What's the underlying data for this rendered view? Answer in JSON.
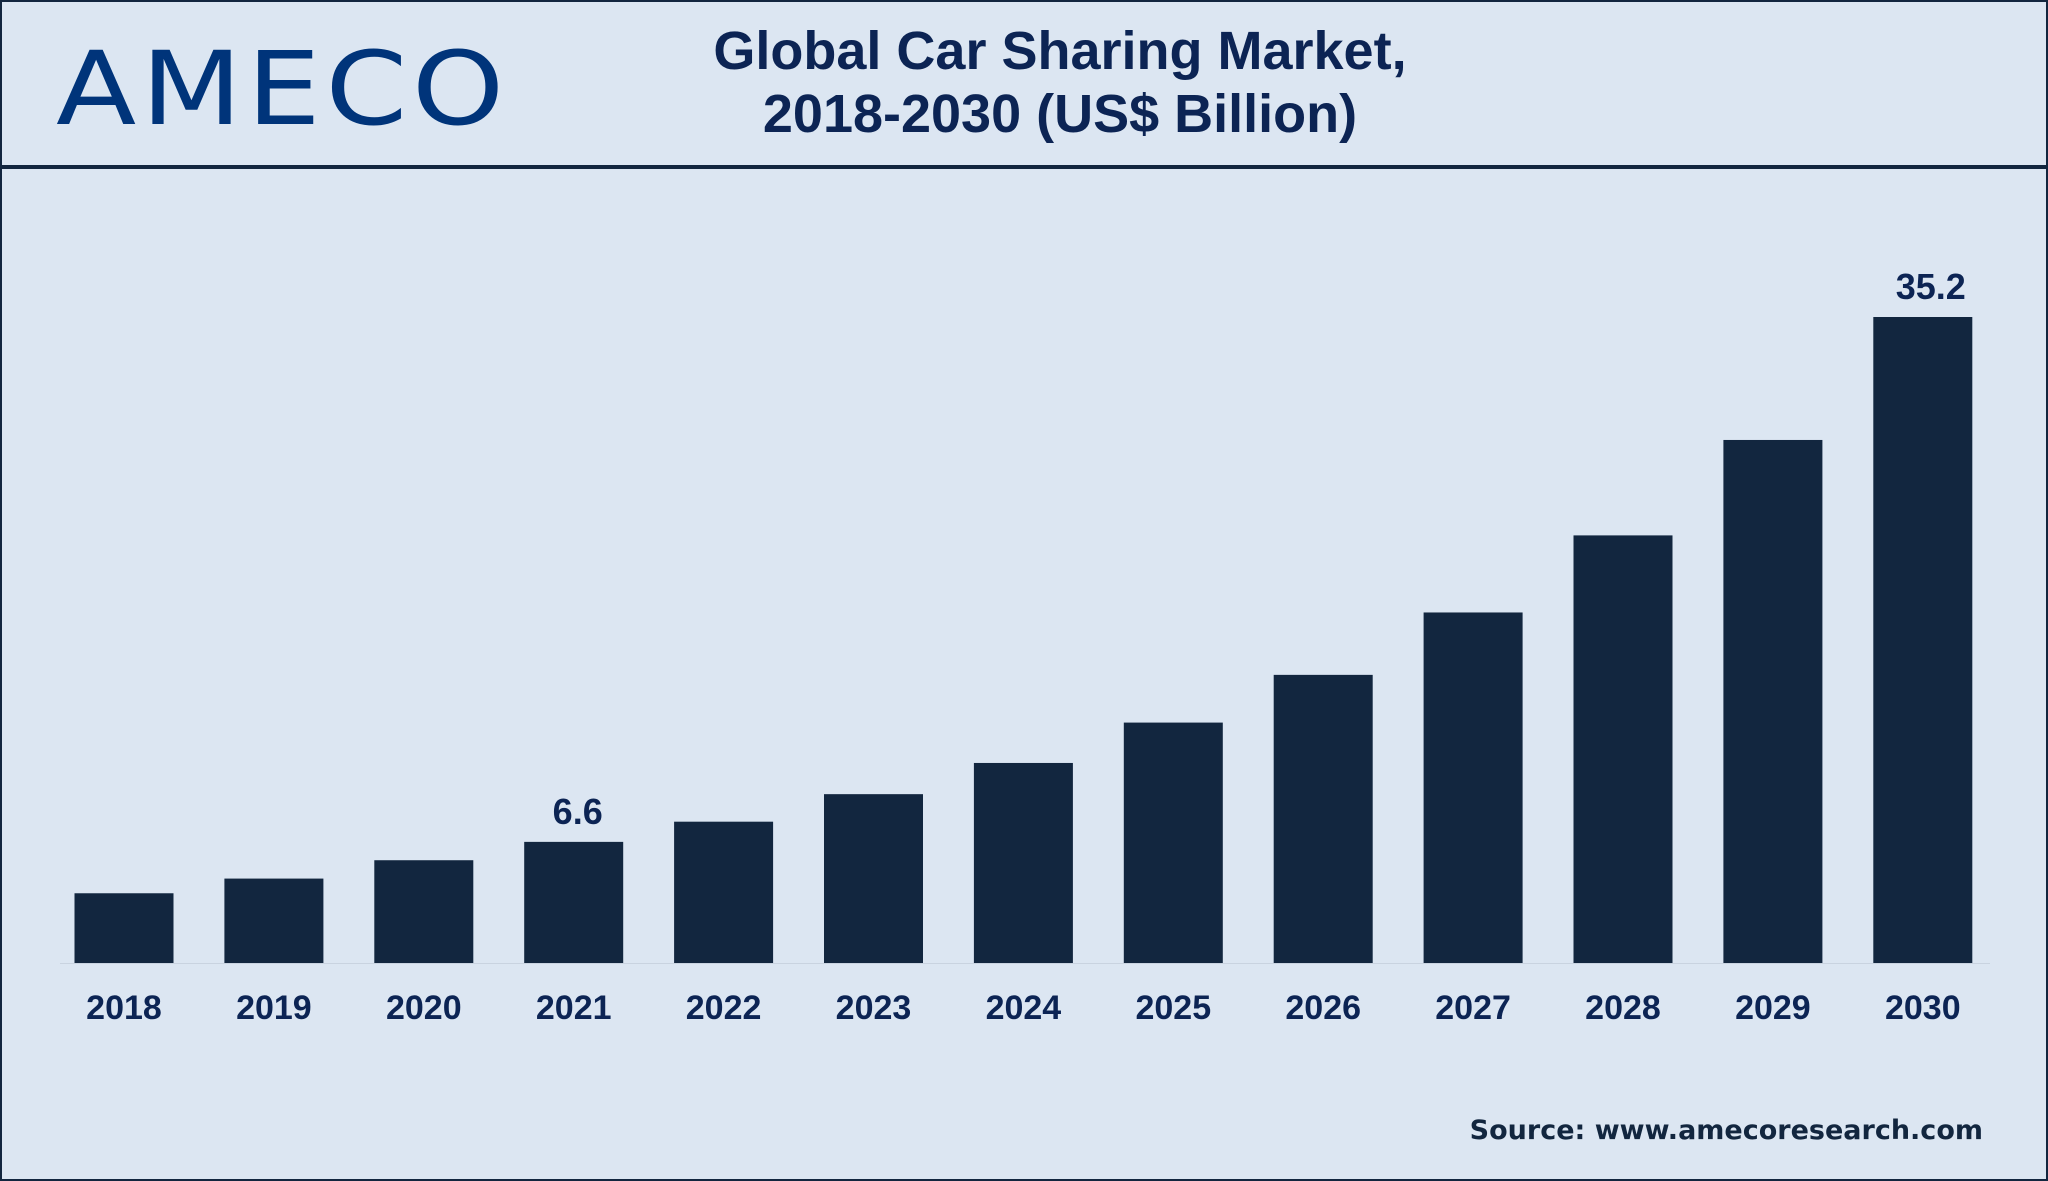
{
  "logo": "AMECO",
  "chart_data": {
    "type": "bar",
    "title": "Global Car Sharing Market,",
    "subtitle": "2018-2030 (US$ Billion)",
    "categories": [
      "2018",
      "2019",
      "2020",
      "2021",
      "2022",
      "2023",
      "2024",
      "2025",
      "2026",
      "2027",
      "2028",
      "2029",
      "2030"
    ],
    "values": [
      3.8,
      4.6,
      5.6,
      6.6,
      7.7,
      9.2,
      10.9,
      13.1,
      15.7,
      19.1,
      23.3,
      28.5,
      35.2
    ],
    "data_labels": {
      "2021": "6.6",
      "2030": "35.2"
    },
    "ylim": [
      0,
      35.2
    ],
    "grid": false,
    "bar_color": "#12263f"
  },
  "source": "Source: www.amecoresearch.com"
}
